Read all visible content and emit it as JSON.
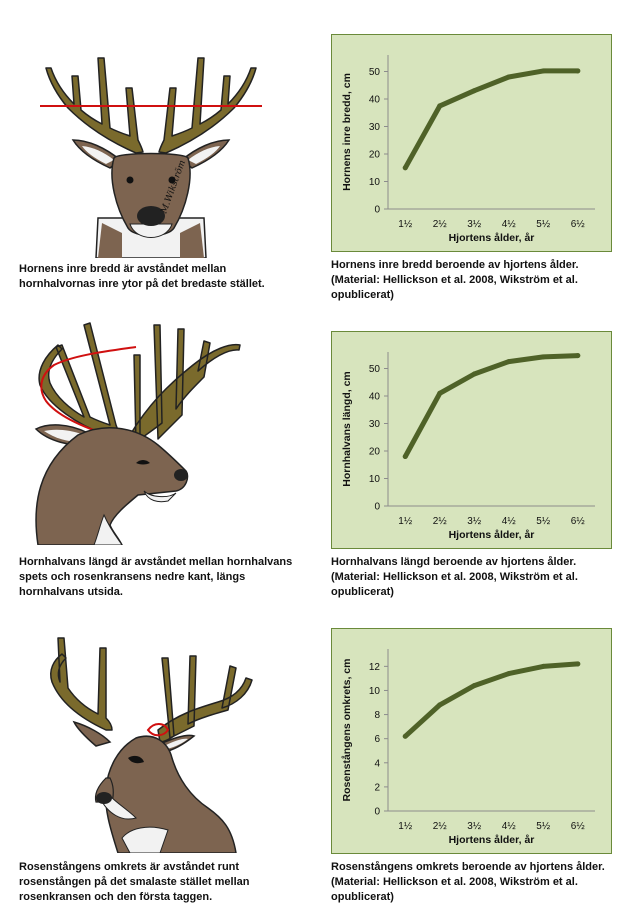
{
  "panels": [
    {
      "caption": [
        "Hornens inre bredd är avståndet mellan",
        "hornhalvornas inre ytor på det bredaste stället."
      ],
      "chart_caption": [
        "Hornens inre bredd beroende av hjortens ålder.",
        "(Material: Hellickson et al. 2008, Wikström et al.",
        "opublicerat)"
      ],
      "signature": "M.Wikström"
    },
    {
      "caption": [
        "Hornhalvans längd är avståndet mellan hornhalvans",
        "spets och rosenkransens nedre kant, längs",
        "hornhalvans utsida."
      ],
      "chart_caption": [
        "Hornhalvans längd beroende av hjortens ålder.",
        "(Material: Hellickson et al. 2008, Wikström et al.",
        "opublicerat)"
      ]
    },
    {
      "caption": [
        "Rosenstångens omkrets är avståndet runt",
        "rosenstången på det smalaste stället mellan",
        "rosenkransen och den första taggen."
      ],
      "chart_caption": [
        "Rosenstångens omkrets beroende av hjortens ålder.",
        "(Material: Hellickson et al. 2008, Wikström et al.",
        "opublicerat)"
      ]
    }
  ],
  "chart_data": [
    {
      "type": "line",
      "categories": [
        "1½",
        "2½",
        "3½",
        "4½",
        "5½",
        "6½"
      ],
      "values": [
        15,
        37.5,
        43,
        48,
        50.2,
        50.2
      ],
      "title": "",
      "xlabel": "Hjortens ålder, år",
      "ylabel": "Hornens inre bredd, cm",
      "ylim": [
        0,
        50
      ],
      "yticks": [
        0,
        10,
        20,
        30,
        40,
        50
      ],
      "grid": false,
      "color": "#4f6228"
    },
    {
      "type": "line",
      "categories": [
        "1½",
        "2½",
        "3½",
        "4½",
        "5½",
        "6½"
      ],
      "values": [
        18,
        41,
        48,
        52.5,
        54.2,
        54.7
      ],
      "title": "",
      "xlabel": "Hjortens ålder, år",
      "ylabel": "Hornhalvans längd, cm",
      "ylim": [
        0,
        50
      ],
      "yticks": [
        0,
        10,
        20,
        30,
        40,
        50
      ],
      "grid": false,
      "color": "#4f6228"
    },
    {
      "type": "line",
      "categories": [
        "1½",
        "2½",
        "3½",
        "4½",
        "5½",
        "6½"
      ],
      "values": [
        6.2,
        8.8,
        10.4,
        11.4,
        12.0,
        12.2
      ],
      "title": "",
      "xlabel": "Hjortens ålder, år",
      "ylabel": "Rosenstångens omkrets, cm",
      "ylim": [
        0,
        12
      ],
      "yticks": [
        0,
        2,
        4,
        6,
        8,
        10,
        12
      ],
      "grid": false,
      "color": "#4f6228"
    }
  ]
}
